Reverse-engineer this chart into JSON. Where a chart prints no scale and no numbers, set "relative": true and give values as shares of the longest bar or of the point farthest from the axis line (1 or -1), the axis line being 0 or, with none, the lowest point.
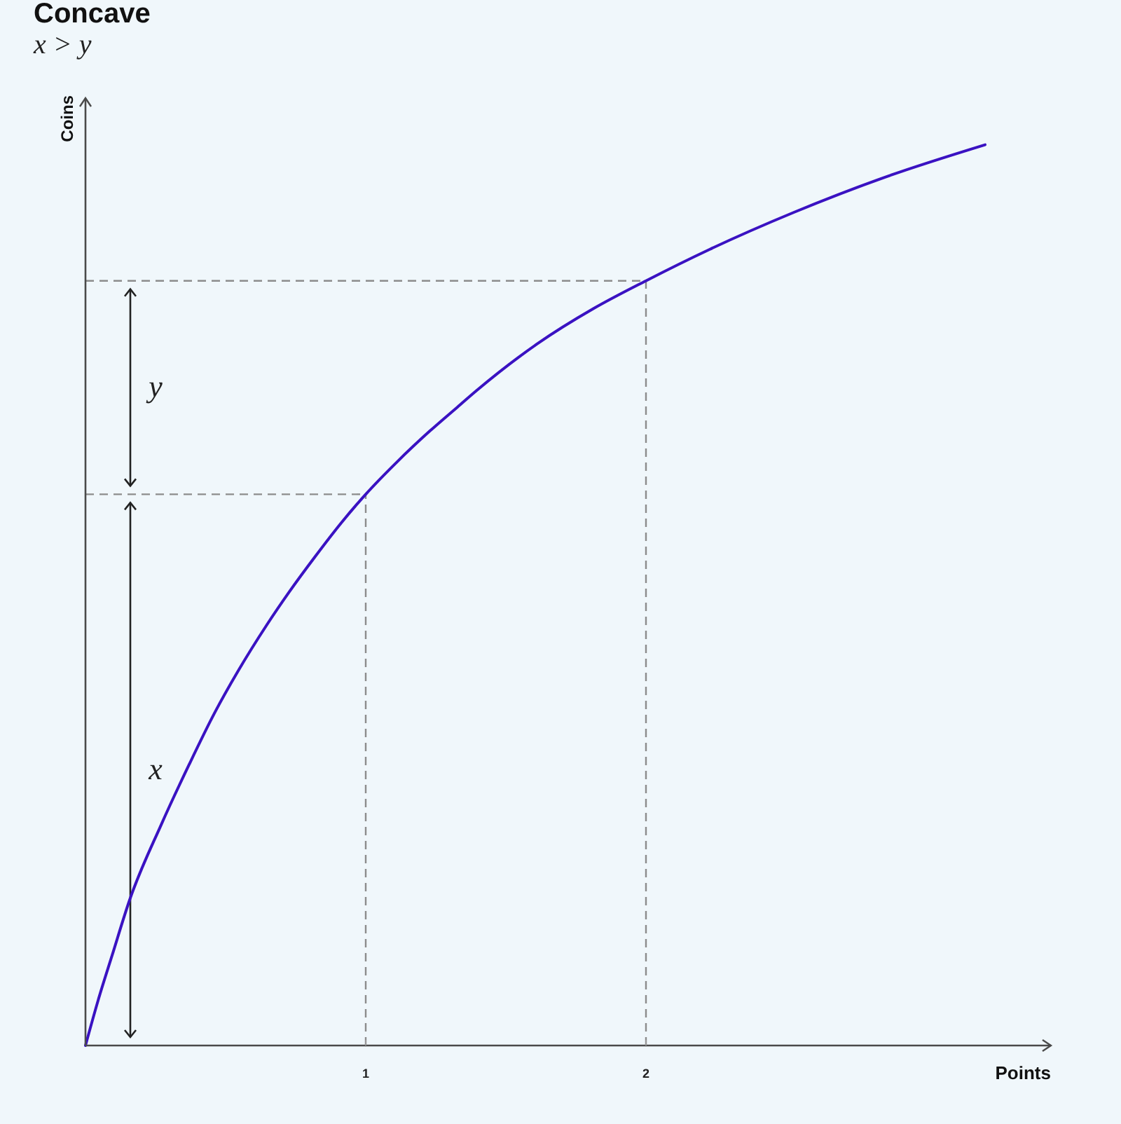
{
  "chart_data": {
    "type": "line",
    "title": "Concave",
    "subtitle": "x > y",
    "xlabel": "Points",
    "ylabel": "Coins",
    "relative": true,
    "x": [
      0,
      0.045,
      0.095,
      0.158,
      0.27,
      0.37,
      0.462,
      0.545,
      0.645,
      0.728,
      0.82,
      0.912,
      1,
      1.112,
      1.228,
      1.328,
      1.395,
      1.612,
      1.812,
      2,
      2.228,
      2.528,
      2.862,
      3.21
    ],
    "series": [
      {
        "color": "#3a12c2",
        "values": [
          0,
          0.05,
          0.1,
          0.162,
          0.245,
          0.312,
          0.37,
          0.416,
          0.466,
          0.504,
          0.543,
          0.58,
          0.612,
          0.648,
          0.682,
          0.709,
          0.727,
          0.779,
          0.818,
          0.849,
          0.884,
          0.925,
          0.965,
          1
        ]
      }
    ],
    "xlim": [
      0,
      3.445
    ],
    "xticks": [
      1,
      2
    ],
    "ref_lines": [
      {
        "axis": "x",
        "value": 1,
        "color": "#8c8c8c",
        "line_style": "dashed"
      },
      {
        "axis": "x",
        "value": 2,
        "color": "#8c8c8c",
        "line_style": "dashed"
      },
      {
        "axis": "y",
        "value": 0.612,
        "color": "#8c8c8c",
        "line_style": "dashed"
      },
      {
        "axis": "y",
        "value": 0.849,
        "color": "#8c8c8c",
        "line_style": "dashed"
      }
    ],
    "annotations": [
      "x",
      "y"
    ]
  }
}
